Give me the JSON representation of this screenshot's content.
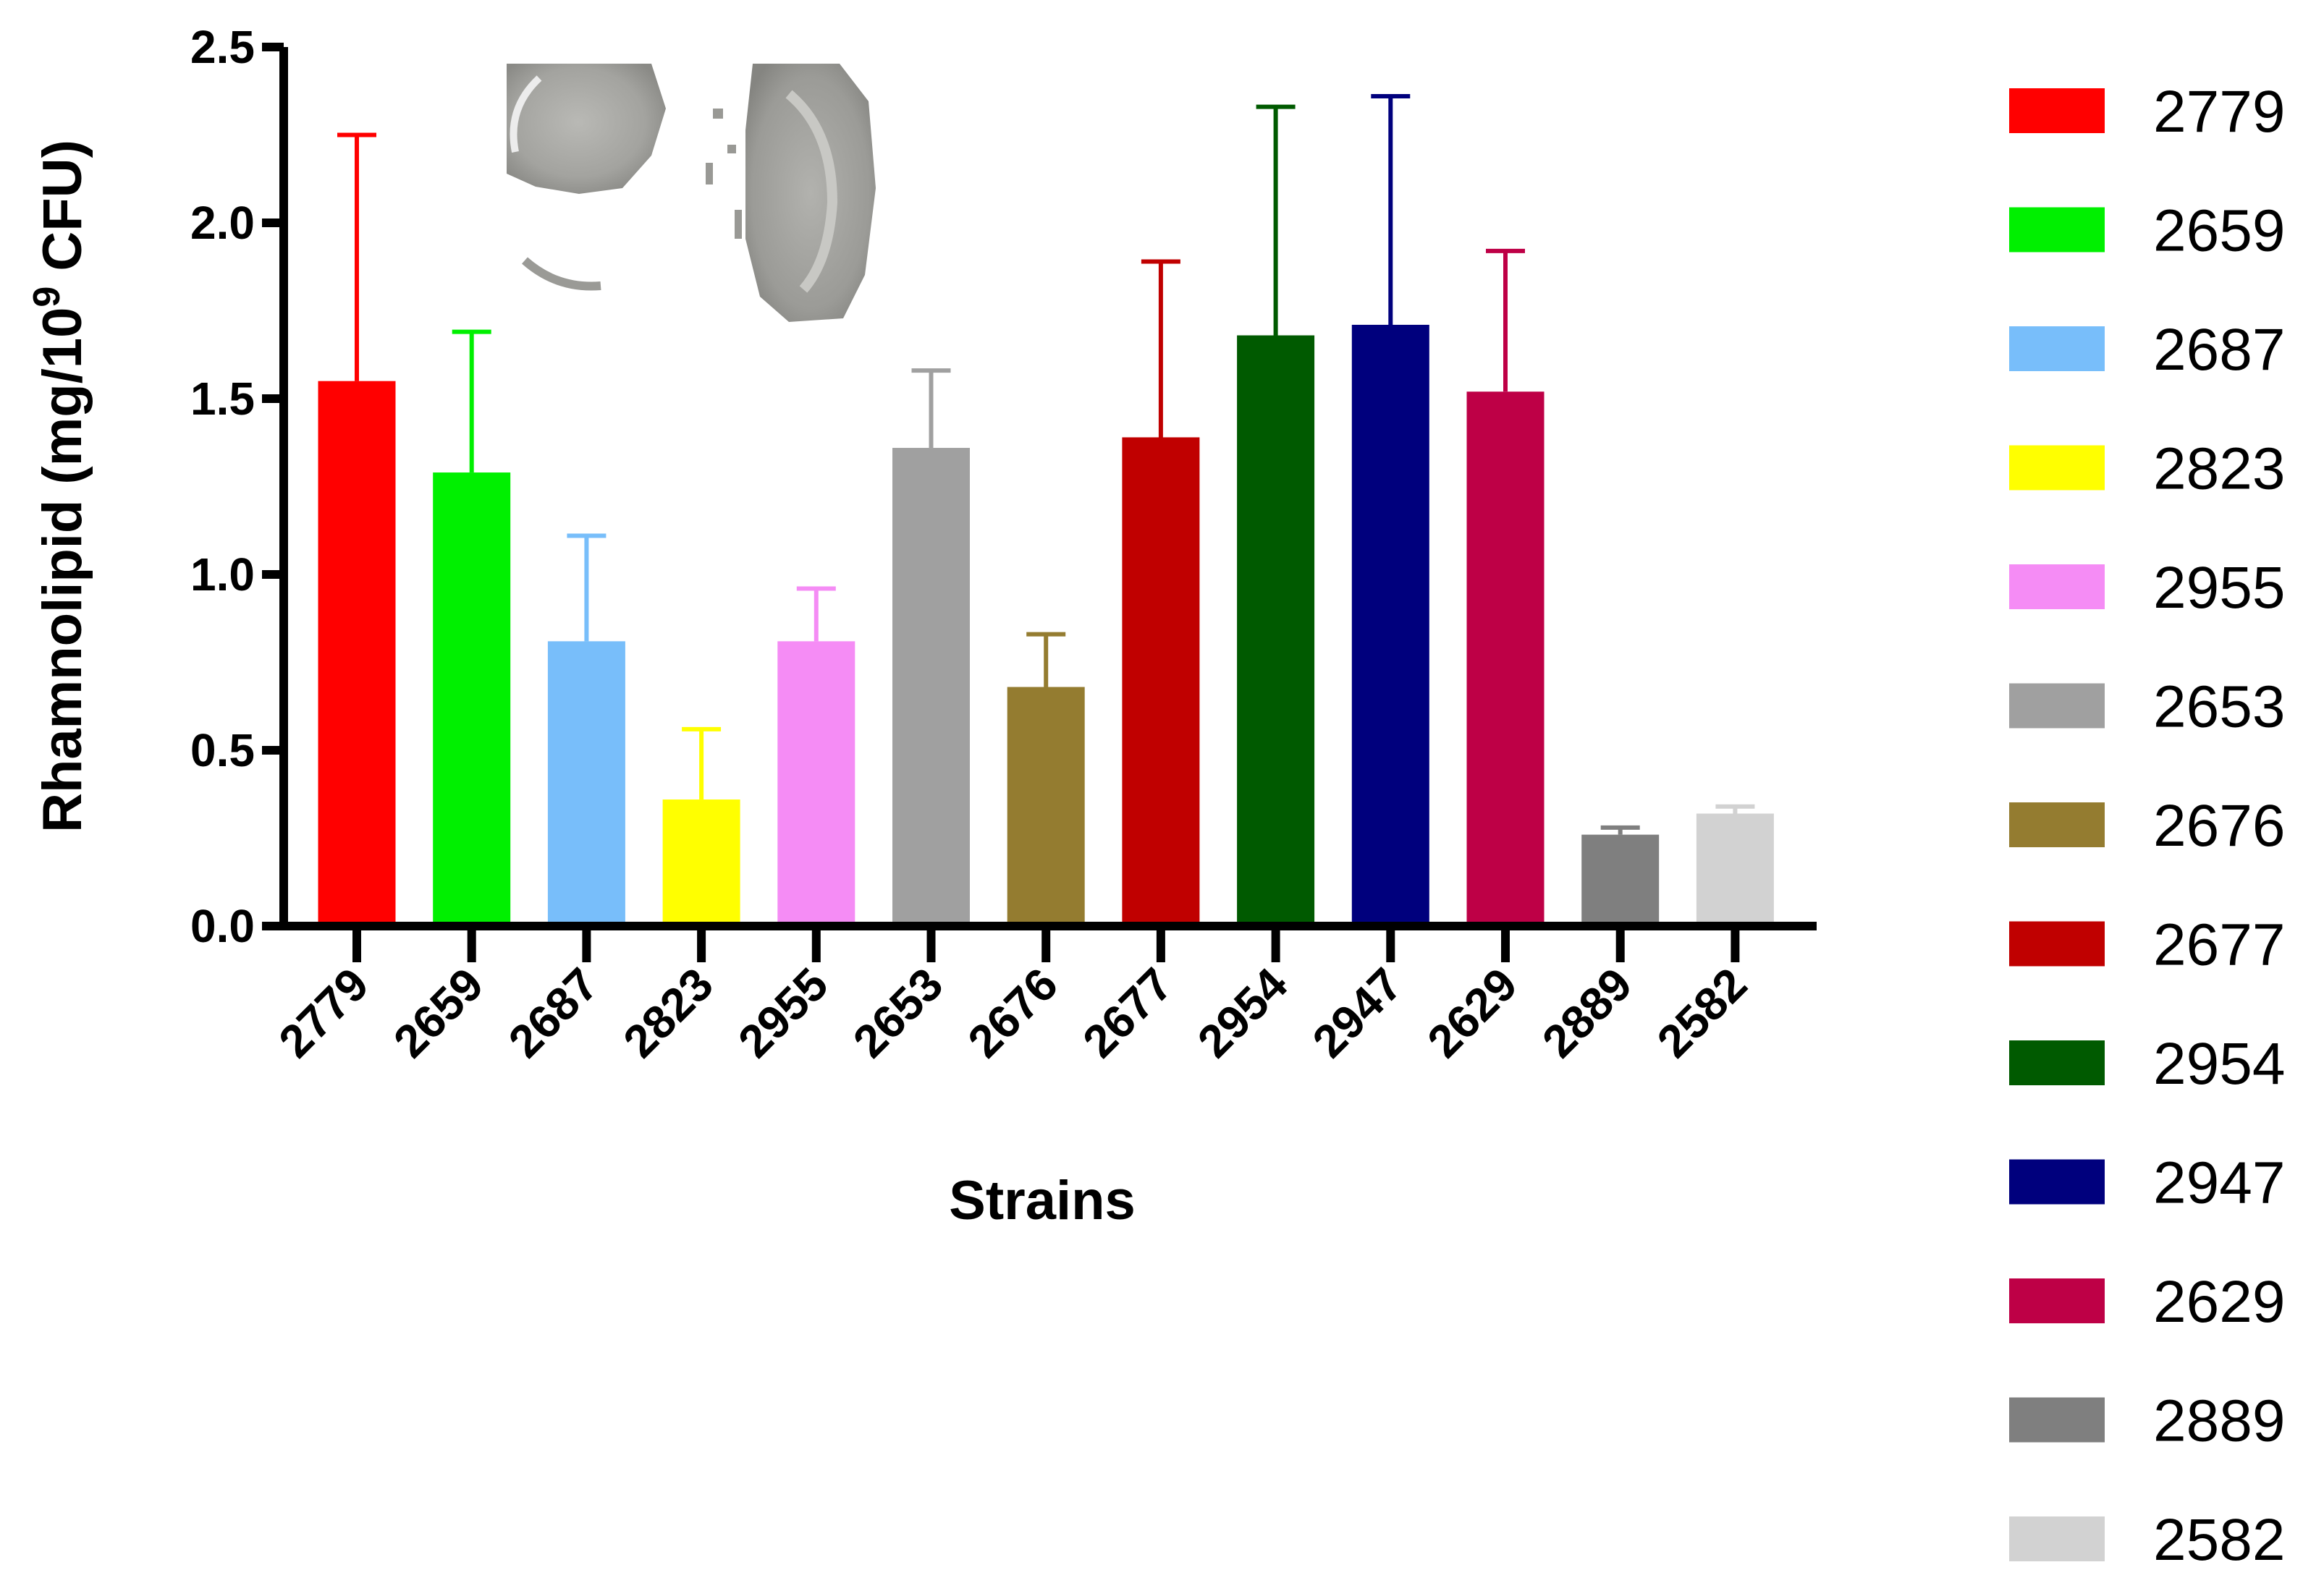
{
  "chart_data": {
    "type": "bar",
    "title": "",
    "xlabel": "Strains",
    "ylabel": {
      "main": "Rhamnolipid (mg/10",
      "sup": "9",
      "tail": " CFU)"
    },
    "ylim": [
      0,
      2.5
    ],
    "yticks": [
      "0.0",
      "0.5",
      "1.0",
      "1.5",
      "2.0",
      "2.5"
    ],
    "grid": false,
    "legend_position": "right",
    "categories": [
      "2779",
      "2659",
      "2687",
      "2823",
      "2955",
      "2653",
      "2676",
      "2677",
      "2954",
      "2947",
      "2629",
      "2889",
      "2582"
    ],
    "values": [
      1.55,
      1.29,
      0.81,
      0.36,
      0.81,
      1.36,
      0.68,
      1.39,
      1.68,
      1.71,
      1.52,
      0.26,
      0.32
    ],
    "errors": [
      0.7,
      0.4,
      0.3,
      0.2,
      0.15,
      0.22,
      0.15,
      0.5,
      0.65,
      0.65,
      0.4,
      0.02,
      0.02
    ],
    "colors": [
      "#FF0000",
      "#00F000",
      "#78BEFA",
      "#FFFF00",
      "#F58CF5",
      "#A0A0A0",
      "#947C30",
      "#C00000",
      "#005A00",
      "#00007D",
      "#BE0046",
      "#7F7F7F",
      "#D2D2D2"
    ],
    "inset_image": "agar-plate-photo"
  }
}
